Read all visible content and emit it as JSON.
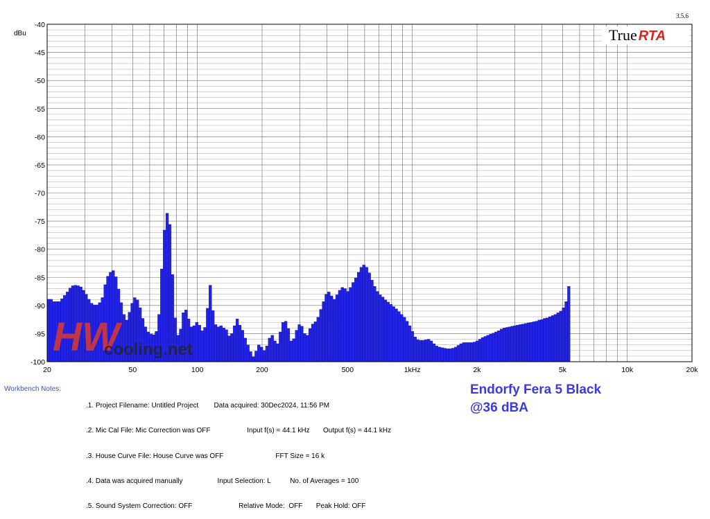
{
  "version": "3.5.6",
  "logo": {
    "part1": "True",
    "part2": "RTA"
  },
  "watermark": {
    "mark": "HW",
    "text": "cooling.net"
  },
  "chart_data": {
    "type": "bar",
    "ylabel": "dBu",
    "xscale": "log",
    "xlim": [
      20,
      20000
    ],
    "ylim": [
      -100,
      -40
    ],
    "x_ticks": [
      {
        "v": 20,
        "label": "20"
      },
      {
        "v": 50,
        "label": "50"
      },
      {
        "v": 100,
        "label": "100"
      },
      {
        "v": 200,
        "label": "200"
      },
      {
        "v": 500,
        "label": "500"
      },
      {
        "v": 1000,
        "label": "1kHz"
      },
      {
        "v": 2000,
        "label": "2k"
      },
      {
        "v": 5000,
        "label": "5k"
      },
      {
        "v": 10000,
        "label": "10k"
      },
      {
        "v": 20000,
        "label": "20k"
      }
    ],
    "y_ticks": [
      -40,
      -45,
      -50,
      -55,
      -60,
      -65,
      -70,
      -75,
      -80,
      -85,
      -90,
      -95,
      -100
    ],
    "grid": true,
    "series_color": "#2323e6",
    "bars_per_octave": 24,
    "values": [
      -88.9,
      -88.9,
      -89.3,
      -89.3,
      -89.3,
      -88.8,
      -88.2,
      -87.6,
      -86.9,
      -86.5,
      -86.4,
      -86.5,
      -86.7,
      -87.3,
      -88.0,
      -88.9,
      -89.6,
      -89.9,
      -89.9,
      -89.5,
      -88.6,
      -86.3,
      -84.8,
      -84.1,
      -83.8,
      -84.9,
      -87.1,
      -89.5,
      -91.6,
      -92.6,
      -91.2,
      -89.6,
      -88.6,
      -89.0,
      -90.4,
      -92.3,
      -93.8,
      -94.7,
      -95.1,
      -95.2,
      -94.6,
      -91.6,
      -83.5,
      -76.6,
      -73.6,
      -75.6,
      -84.5,
      -92.2,
      -95.3,
      -94.2,
      -91.3,
      -90.8,
      -92.4,
      -93.8,
      -93.6,
      -93.0,
      -93.5,
      -94.5,
      -93.9,
      -90.5,
      -86.4,
      -90.9,
      -93.4,
      -93.8,
      -93.6,
      -94.0,
      -94.3,
      -95.4,
      -95.0,
      -93.6,
      -92.4,
      -93.5,
      -94.4,
      -95.8,
      -97.0,
      -98.2,
      -99.1,
      -98.1,
      -97.0,
      -97.4,
      -98.0,
      -97.2,
      -95.8,
      -95.3,
      -96.3,
      -96.8,
      -94.7,
      -93.0,
      -92.8,
      -94.1,
      -96.3,
      -95.9,
      -94.4,
      -93.4,
      -93.7,
      -95.0,
      -95.3,
      -94.1,
      -93.3,
      -92.9,
      -92.1,
      -90.7,
      -89.3,
      -88.0,
      -87.6,
      -88.3,
      -88.9,
      -88.1,
      -87.3,
      -86.8,
      -87.0,
      -87.5,
      -86.8,
      -85.9,
      -85.1,
      -84.1,
      -83.2,
      -82.8,
      -83.2,
      -84.2,
      -85.5,
      -86.6,
      -87.5,
      -88.1,
      -88.5,
      -89.0,
      -89.4,
      -89.8,
      -90.2,
      -90.6,
      -91.1,
      -91.6,
      -92.1,
      -92.8,
      -93.6,
      -94.6,
      -95.6,
      -96.1,
      -96.2,
      -96.2,
      -96.1,
      -96.0,
      -96.3,
      -96.8,
      -97.2,
      -97.4,
      -97.5,
      -97.6,
      -97.7,
      -97.7,
      -97.6,
      -97.4,
      -97.1,
      -96.8,
      -96.6,
      -96.6,
      -96.6,
      -96.6,
      -96.5,
      -96.3,
      -96.0,
      -95.7,
      -95.5,
      -95.3,
      -95.1,
      -94.9,
      -94.7,
      -94.5,
      -94.2,
      -94.0,
      -93.9,
      -93.8,
      -93.7,
      -93.6,
      -93.5,
      -93.4,
      -93.3,
      -93.2,
      -93.1,
      -93.0,
      -92.9,
      -92.8,
      -92.6,
      -92.5,
      -92.3,
      -92.2,
      -92.0,
      -91.8,
      -91.6,
      -91.3,
      -91.0,
      -90.4,
      -89.3,
      -86.6
    ]
  },
  "workbench": {
    "label": "Workbench Notes:",
    "lines": [
      ".1. Project Filename: Untitled Project        Data acquired: 30Dec2024, 11:56 PM",
      ".2. Mic Cal File: Mic Correction was OFF                   Input f(s) = 44.1 kHz       Output f(s) = 44.1 kHz",
      ".3. House Curve File: House Curve was OFF                           FFT Size = 16 k",
      ".4. Data was acquired manually                  Input Selection: L          No. of Averages = 100",
      ".5. Sound System Correction: OFF                        Relative Mode:  OFF       Peak Hold: OFF"
    ]
  },
  "caption": {
    "line1": "Endorfy Fera 5 Black",
    "line2": "@36 dBA"
  }
}
